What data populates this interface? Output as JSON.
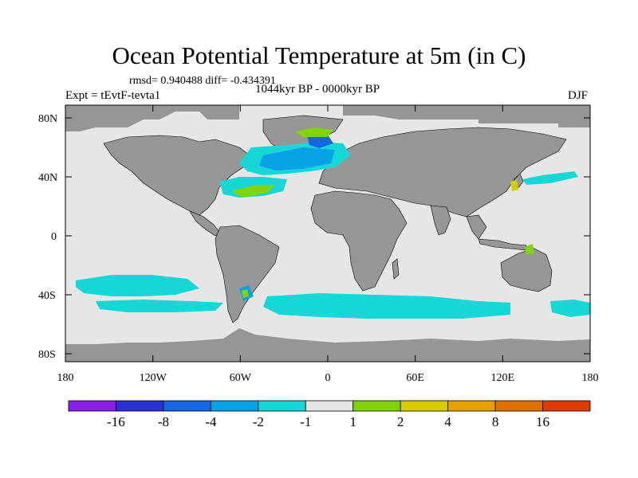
{
  "title": "Ocean Potential Temperature at 5m (in C)",
  "stats": "rmsd= 0.940488  diff= -0.434391",
  "experiment": "Expt = tEvtF-tevta1",
  "period": "1044kyr BP - 0000kyr BP",
  "season": "DJF",
  "lat_labels": [
    "80N",
    "40N",
    "0",
    "40S",
    "80S"
  ],
  "lon_labels": [
    "180",
    "120W",
    "60W",
    "0",
    "60E",
    "120E",
    "180"
  ],
  "colorbar": {
    "labels": [
      "-16",
      "-8",
      "-4",
      "-2",
      "-1",
      "1",
      "2",
      "4",
      "8",
      "16"
    ],
    "colors": [
      "#8a1fe6",
      "#2b2fd6",
      "#1566e0",
      "#0aa2e6",
      "#16d6d6",
      "#e6e6e6",
      "#82d20c",
      "#d8cc00",
      "#e6a000",
      "#e07000",
      "#e03c00"
    ]
  },
  "colors": {
    "land": "#969696",
    "ocean_neutral": "#e6e6e6"
  }
}
